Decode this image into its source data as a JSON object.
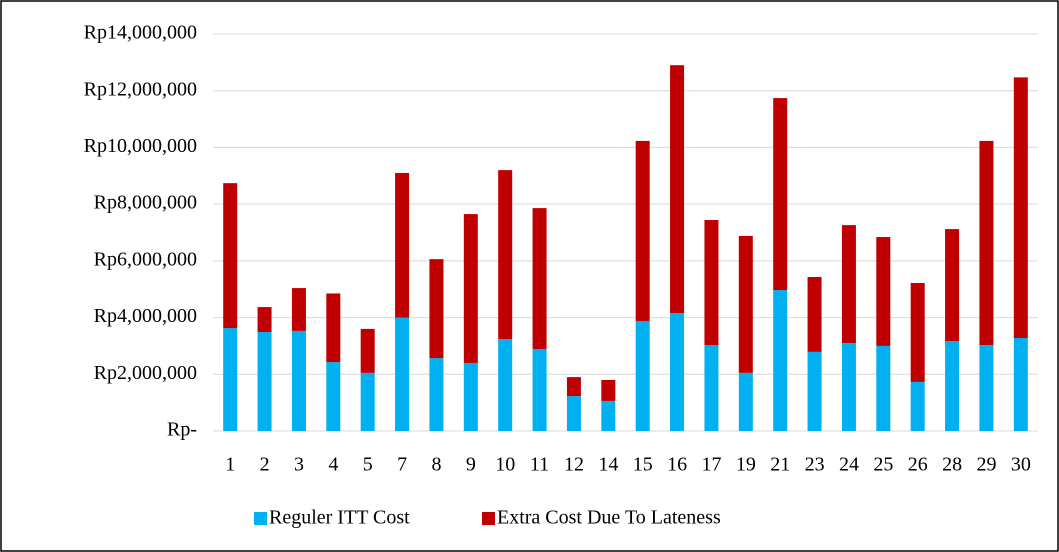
{
  "chart_data": {
    "type": "stacked_bar",
    "categories": [
      "1",
      "2",
      "3",
      "4",
      "5",
      "7",
      "8",
      "9",
      "10",
      "11",
      "12",
      "14",
      "15",
      "16",
      "17",
      "19",
      "21",
      "23",
      "24",
      "25",
      "26",
      "28",
      "29",
      "30"
    ],
    "series": [
      {
        "name": "Reguler ITT Cost",
        "color": "#00b0f0",
        "values": [
          3630000,
          3490000,
          3530000,
          2430000,
          2050000,
          4000000,
          2570000,
          2400000,
          3240000,
          2890000,
          1230000,
          1060000,
          3880000,
          4160000,
          3030000,
          2050000,
          4970000,
          2790000,
          3100000,
          3000000,
          1730000,
          3170000,
          3030000,
          3280000
        ]
      },
      {
        "name": "Extra Cost Due To Lateness",
        "color": "#c00000",
        "values": [
          5110000,
          880000,
          1510000,
          2420000,
          1550000,
          5100000,
          3490000,
          5250000,
          5960000,
          4970000,
          670000,
          740000,
          6350000,
          8740000,
          4410000,
          4830000,
          6770000,
          2640000,
          4160000,
          3840000,
          3490000,
          3950000,
          7200000,
          9190000
        ]
      }
    ],
    "ylim": [
      0,
      14000000
    ],
    "yticks": [
      {
        "value": 0,
        "label": "Rp-"
      },
      {
        "value": 2000000,
        "label": "Rp2,000,000"
      },
      {
        "value": 4000000,
        "label": "Rp4,000,000"
      },
      {
        "value": 6000000,
        "label": "Rp6,000,000"
      },
      {
        "value": 8000000,
        "label": "Rp8,000,000"
      },
      {
        "value": 10000000,
        "label": "Rp10,000,000"
      },
      {
        "value": 12000000,
        "label": "Rp12,000,000"
      },
      {
        "value": 14000000,
        "label": "Rp14,000,000"
      }
    ],
    "grid": true,
    "legend": "bottom"
  }
}
